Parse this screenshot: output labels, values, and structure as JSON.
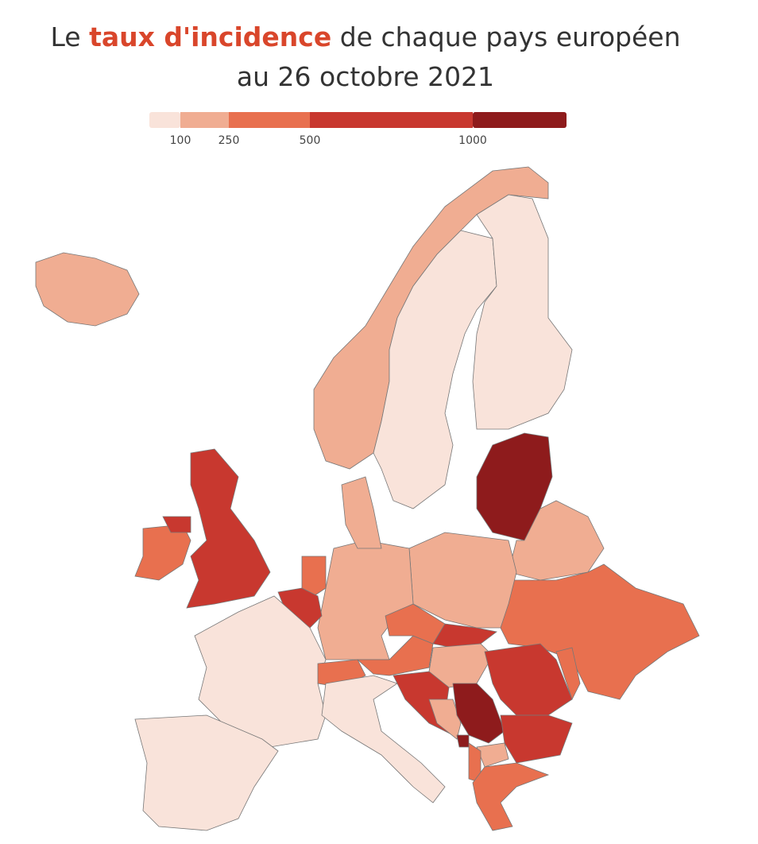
{
  "title": {
    "prefix": "Le",
    "highlight": "taux d'incidence",
    "suffix": "de chaque pays européen",
    "line2": "au 26 octobre 2021"
  },
  "legend": {
    "bins": [
      100,
      250,
      500,
      1000
    ],
    "colors": [
      "#f9e3da",
      "#f0ad92",
      "#e8704f",
      "#c8382f",
      "#8e1b1c"
    ]
  }
}
